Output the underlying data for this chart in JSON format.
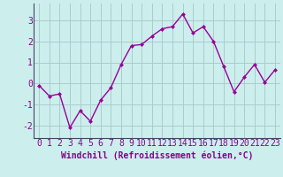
{
  "x": [
    0,
    1,
    2,
    3,
    4,
    5,
    6,
    7,
    8,
    9,
    10,
    11,
    12,
    13,
    14,
    15,
    16,
    17,
    18,
    19,
    20,
    21,
    22,
    23
  ],
  "y": [
    -0.1,
    -0.6,
    -0.5,
    -2.1,
    -1.3,
    -1.8,
    -0.8,
    -0.2,
    0.9,
    1.8,
    1.85,
    2.25,
    2.6,
    2.7,
    3.3,
    2.4,
    2.7,
    2.0,
    0.8,
    -0.4,
    0.3,
    0.9,
    0.05,
    0.65
  ],
  "line_color": "#990099",
  "marker": "D",
  "markersize": 2,
  "linewidth": 1,
  "background_color": "#cceeed",
  "grid_color": "#aacccc",
  "xlabel": "Windchill (Refroidissement éolien,°C)",
  "xlim": [
    -0.5,
    23.5
  ],
  "ylim": [
    -2.6,
    3.8
  ],
  "yticks": [
    -2,
    -1,
    0,
    1,
    2,
    3
  ],
  "xticks": [
    0,
    1,
    2,
    3,
    4,
    5,
    6,
    7,
    8,
    9,
    10,
    11,
    12,
    13,
    14,
    15,
    16,
    17,
    18,
    19,
    20,
    21,
    22,
    23
  ],
  "xlabel_fontsize": 7,
  "tick_fontsize": 7
}
